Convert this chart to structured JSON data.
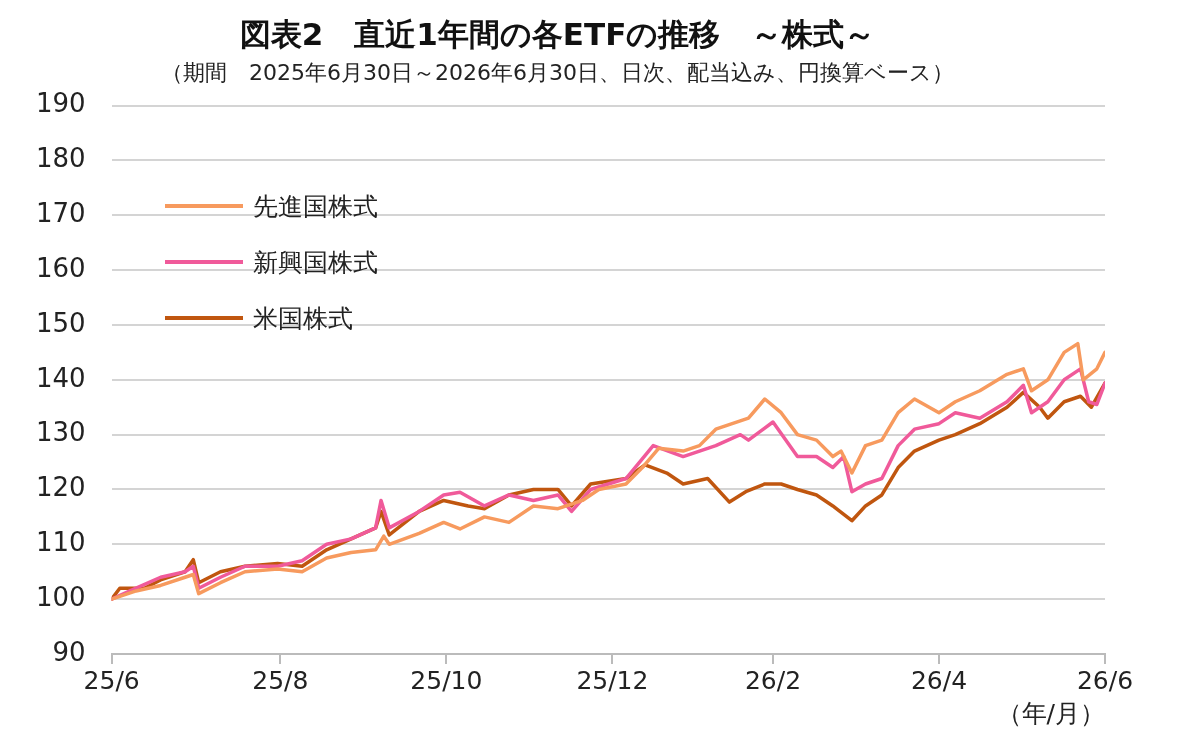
{
  "chart_data": {
    "type": "line",
    "title": "図表2　直近1年間の各ETFの推移　～株式～",
    "subtitle": "（期間　2025年6月30日～2026年6月30日、日次、配当込み、円換算ベース）",
    "xlabel": "（年/月）",
    "xlim": [
      "2025-06-30",
      "2026-06-30"
    ],
    "xticks": [
      {
        "value": "2025-06-30",
        "label": "25/6"
      },
      {
        "value": "2025-08-31",
        "label": "25/8"
      },
      {
        "value": "2025-10-31",
        "label": "25/10"
      },
      {
        "value": "2025-12-31",
        "label": "25/12"
      },
      {
        "value": "2026-02-28",
        "label": "26/2"
      },
      {
        "value": "2026-04-30",
        "label": "26/4"
      },
      {
        "value": "2026-06-30",
        "label": "26/6"
      }
    ],
    "ylim": [
      90,
      190
    ],
    "yticks": [
      90,
      100,
      110,
      120,
      130,
      140,
      150,
      160,
      170,
      180,
      190
    ],
    "grid": "y",
    "legend": "top left",
    "line_style": "solid",
    "series": [
      {
        "name": "先進国株式",
        "color": "#f79a5e",
        "x": [
          "2025-06-30",
          "2025-07-09",
          "2025-07-18",
          "2025-07-27",
          "2025-07-30",
          "2025-08-01",
          "2025-08-09",
          "2025-08-18",
          "2025-08-30",
          "2025-09-08",
          "2025-09-17",
          "2025-09-26",
          "2025-10-05",
          "2025-10-08",
          "2025-10-10",
          "2025-10-21",
          "2025-10-30",
          "2025-11-05",
          "2025-11-14",
          "2025-11-23",
          "2025-12-02",
          "2025-12-11",
          "2025-12-20",
          "2025-12-26",
          "2026-01-05",
          "2026-01-11",
          "2026-01-17",
          "2026-01-26",
          "2026-02-01",
          "2026-02-07",
          "2026-02-13",
          "2026-02-19",
          "2026-02-25",
          "2026-03-03",
          "2026-03-09",
          "2026-03-16",
          "2026-03-22",
          "2026-03-25",
          "2026-03-29",
          "2026-04-03",
          "2026-04-09",
          "2026-04-15",
          "2026-04-21",
          "2026-04-30",
          "2026-05-06",
          "2026-05-15",
          "2026-05-25",
          "2026-05-31",
          "2026-06-03",
          "2026-06-09",
          "2026-06-15",
          "2026-06-20",
          "2026-06-22",
          "2026-06-27",
          "2026-06-30"
        ],
        "values": [
          100,
          101.5,
          102.5,
          104,
          104.5,
          101,
          103,
          105,
          105.5,
          105,
          107.5,
          108.5,
          109,
          111.5,
          110,
          112,
          114,
          112.8,
          115,
          114,
          117,
          116.5,
          118,
          120,
          121,
          124,
          127.5,
          127,
          128,
          131,
          132,
          133,
          136.5,
          134,
          130,
          129,
          126,
          127,
          123,
          128,
          129,
          134,
          136.5,
          134,
          136,
          138,
          141,
          142,
          138,
          140,
          145,
          146.6,
          140,
          142,
          145
        ]
      },
      {
        "name": "新興国株式",
        "color": "#f05a9a",
        "x": [
          "2025-06-30",
          "2025-07-09",
          "2025-07-18",
          "2025-07-27",
          "2025-07-30",
          "2025-08-01",
          "2025-08-09",
          "2025-08-18",
          "2025-08-30",
          "2025-09-08",
          "2025-09-17",
          "2025-09-26",
          "2025-10-05",
          "2025-10-07",
          "2025-10-10",
          "2025-10-21",
          "2025-10-30",
          "2025-11-05",
          "2025-11-14",
          "2025-11-23",
          "2025-12-02",
          "2025-12-11",
          "2025-12-16",
          "2025-12-23",
          "2026-01-05",
          "2026-01-15",
          "2026-01-26",
          "2026-02-01",
          "2026-02-07",
          "2026-02-16",
          "2026-02-19",
          "2026-02-28",
          "2026-03-09",
          "2026-03-16",
          "2026-03-22",
          "2026-03-26",
          "2026-03-29",
          "2026-04-03",
          "2026-04-09",
          "2026-04-15",
          "2026-04-21",
          "2026-04-30",
          "2026-05-06",
          "2026-05-15",
          "2026-05-25",
          "2026-05-31",
          "2026-06-03",
          "2026-06-09",
          "2026-06-15",
          "2026-06-21",
          "2026-06-24",
          "2026-06-27",
          "2026-06-30"
        ],
        "values": [
          100,
          102,
          104,
          105,
          106,
          102,
          104,
          106,
          106,
          107,
          110,
          111,
          113,
          118,
          113,
          116,
          119,
          119.5,
          117,
          119,
          118,
          119,
          116,
          120,
          122,
          128,
          126,
          127,
          128,
          130,
          129,
          132.3,
          126,
          126,
          124,
          126,
          119.6,
          121,
          122,
          128,
          131,
          132,
          134,
          133,
          136,
          139,
          134,
          136,
          140,
          142,
          136,
          135.5,
          139.4
        ]
      },
      {
        "name": "米国株式",
        "color": "#c0560f",
        "x": [
          "2025-06-30",
          "2025-07-03",
          "2025-07-12",
          "2025-07-18",
          "2025-07-27",
          "2025-07-30",
          "2025-08-01",
          "2025-08-09",
          "2025-08-18",
          "2025-08-30",
          "2025-09-08",
          "2025-09-17",
          "2025-09-26",
          "2025-10-05",
          "2025-10-07",
          "2025-10-10",
          "2025-10-21",
          "2025-10-30",
          "2025-11-08",
          "2025-11-14",
          "2025-11-23",
          "2025-12-02",
          "2025-12-11",
          "2025-12-16",
          "2025-12-23",
          "2026-01-05",
          "2026-01-12",
          "2026-01-20",
          "2026-01-26",
          "2026-02-04",
          "2026-02-12",
          "2026-02-18",
          "2026-02-25",
          "2026-03-03",
          "2026-03-09",
          "2026-03-16",
          "2026-03-22",
          "2026-03-29",
          "2026-04-03",
          "2026-04-09",
          "2026-04-15",
          "2026-04-21",
          "2026-04-30",
          "2026-05-06",
          "2026-05-15",
          "2026-05-25",
          "2026-05-31",
          "2026-06-06",
          "2026-06-09",
          "2026-06-15",
          "2026-06-21",
          "2026-06-25",
          "2026-06-30"
        ],
        "values": [
          100,
          102,
          102,
          103.5,
          105,
          107.2,
          103,
          105,
          106,
          106.5,
          106,
          109,
          111,
          113,
          116,
          111.7,
          116,
          118,
          117,
          116.5,
          119,
          120,
          120,
          117,
          121,
          122,
          124.5,
          123,
          121,
          122,
          117.7,
          119.6,
          121,
          121,
          120,
          119,
          117,
          114.3,
          117,
          119,
          124,
          127,
          129,
          130,
          132,
          135,
          137.7,
          135,
          133,
          136,
          137,
          135,
          139.4
        ]
      }
    ]
  }
}
